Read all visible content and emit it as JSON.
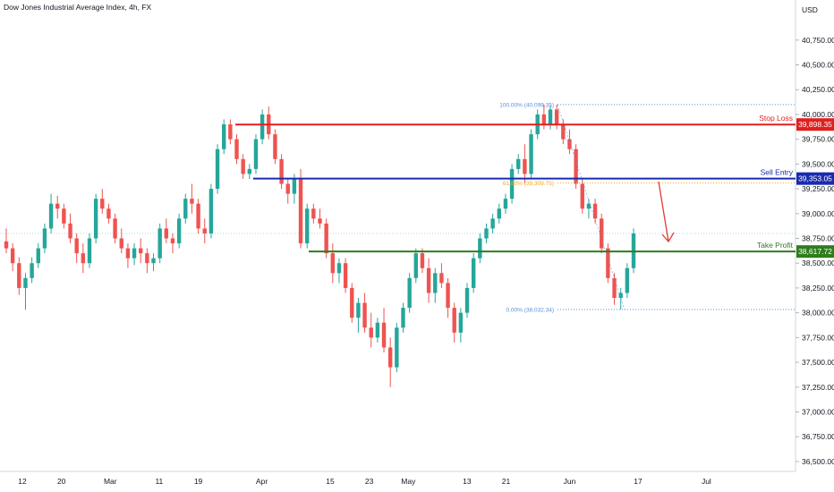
{
  "header": {
    "title": "Dow Jones Industrial Average Index, 4h, FX",
    "currency": "USD"
  },
  "chart_data": {
    "type": "candlestick",
    "title": "Dow Jones Industrial Average Index, 4h, FX",
    "ylim": [
      36400,
      41100
    ],
    "y_ticks": [
      {
        "value": 40750,
        "label": "40,750.00"
      },
      {
        "value": 40500,
        "label": "40,500.00"
      },
      {
        "value": 40250,
        "label": "40,250.00"
      },
      {
        "value": 40000,
        "label": "40,000.00"
      },
      {
        "value": 39750,
        "label": "39,750.00"
      },
      {
        "value": 39500,
        "label": "39,500.00"
      },
      {
        "value": 39250,
        "label": "39,250.00"
      },
      {
        "value": 39000,
        "label": "39,000.00"
      },
      {
        "value": 38750,
        "label": "38,750.00"
      },
      {
        "value": 38500,
        "label": "38,500.00"
      },
      {
        "value": 38250,
        "label": "38,250.00"
      },
      {
        "value": 38000,
        "label": "38,000.00"
      },
      {
        "value": 37750,
        "label": "37,750.00"
      },
      {
        "value": 37500,
        "label": "37,500.00"
      },
      {
        "value": 37250,
        "label": "37,250.00"
      },
      {
        "value": 37000,
        "label": "37,000.00"
      },
      {
        "value": 36750,
        "label": "36,750.00"
      },
      {
        "value": 36500,
        "label": "36,500.00"
      }
    ],
    "x_ticks": [
      {
        "date": "2024-02-12",
        "label": "12"
      },
      {
        "date": "2024-02-20",
        "label": "20"
      },
      {
        "date": "2024-03-01",
        "label": "Mar"
      },
      {
        "date": "2024-03-11",
        "label": "11"
      },
      {
        "date": "2024-03-19",
        "label": "19"
      },
      {
        "date": "2024-04-01",
        "label": "Apr"
      },
      {
        "date": "2024-04-15",
        "label": "15"
      },
      {
        "date": "2024-04-23",
        "label": "23"
      },
      {
        "date": "2024-05-01",
        "label": "May"
      },
      {
        "date": "2024-05-13",
        "label": "13"
      },
      {
        "date": "2024-05-21",
        "label": "21"
      },
      {
        "date": "2024-06-03",
        "label": "Jun"
      },
      {
        "date": "2024-06-17",
        "label": "17"
      },
      {
        "date": "2024-07-01",
        "label": "Jul"
      }
    ],
    "levels": [
      {
        "name": "Stop Loss",
        "value": 39898.35,
        "price_label": "39,898.35",
        "color": "#e01f1f"
      },
      {
        "name": "Sell Entry",
        "value": 39353.05,
        "price_label": "39,353.05",
        "color": "#1a2bb0"
      },
      {
        "name": "Take Profit",
        "value": 38617.72,
        "price_label": "38,617.72",
        "color": "#2e7d1e"
      }
    ],
    "fibonacci": [
      {
        "label": "100.00% (40,099.35)",
        "value": 40099.35,
        "color": "#5b8fd6"
      },
      {
        "label": "61.80% (39,309.75)",
        "value": 39309.75,
        "color": "#f5a623"
      },
      {
        "label": "0.00% (38,032.34)",
        "value": 38032.34,
        "color": "#5b8fd6"
      }
    ],
    "last_price": 38800,
    "series": [
      {
        "ohlc": [
          [
            38720,
            38850,
            38600,
            38650
          ],
          [
            38650,
            38700,
            38420,
            38500
          ],
          [
            38500,
            38560,
            38180,
            38250
          ],
          [
            38250,
            38400,
            38030,
            38350
          ],
          [
            38350,
            38560,
            38300,
            38500
          ],
          [
            38500,
            38700,
            38450,
            38650
          ],
          [
            38650,
            38900,
            38600,
            38850
          ],
          [
            38850,
            39200,
            38800,
            39100
          ],
          [
            39100,
            39180,
            38950,
            39050
          ],
          [
            39050,
            39100,
            38850,
            38900
          ],
          [
            38900,
            39000,
            38700,
            38750
          ],
          [
            38750,
            38800,
            38500,
            38600
          ],
          [
            38600,
            38700,
            38400,
            38500
          ],
          [
            38500,
            38800,
            38450,
            38750
          ],
          [
            38750,
            39200,
            38700,
            39150
          ],
          [
            39150,
            39250,
            39000,
            39050
          ],
          [
            39050,
            39100,
            38900,
            38950
          ],
          [
            38950,
            39000,
            38700,
            38750
          ],
          [
            38750,
            38850,
            38600,
            38650
          ],
          [
            38650,
            38700,
            38450,
            38550
          ],
          [
            38550,
            38700,
            38480,
            38650
          ],
          [
            38650,
            38750,
            38500,
            38600
          ],
          [
            38600,
            38650,
            38400,
            38500
          ],
          [
            38500,
            38600,
            38420,
            38550
          ],
          [
            38550,
            38900,
            38500,
            38850
          ],
          [
            38850,
            38950,
            38700,
            38750
          ],
          [
            38750,
            38800,
            38600,
            38700
          ],
          [
            38700,
            39000,
            38650,
            38950
          ],
          [
            38950,
            39200,
            38900,
            39150
          ],
          [
            39150,
            39300,
            39000,
            39100
          ],
          [
            39100,
            39150,
            38800,
            38850
          ],
          [
            38850,
            38950,
            38700,
            38800
          ],
          [
            38800,
            39300,
            38750,
            39250
          ],
          [
            39250,
            39700,
            39200,
            39650
          ],
          [
            39650,
            39950,
            39600,
            39900
          ],
          [
            39900,
            39950,
            39700,
            39750
          ],
          [
            39750,
            39800,
            39500,
            39550
          ],
          [
            39550,
            39600,
            39350,
            39400
          ],
          [
            39400,
            39500,
            39350,
            39450
          ],
          [
            39450,
            39800,
            39400,
            39750
          ],
          [
            39750,
            40050,
            39700,
            40000
          ],
          [
            40000,
            40080,
            39750,
            39800
          ],
          [
            39800,
            39850,
            39500,
            39550
          ],
          [
            39550,
            39600,
            39250,
            39300
          ],
          [
            39300,
            39350,
            39100,
            39200
          ],
          [
            39200,
            39400,
            39100,
            39350
          ],
          [
            39350,
            39450,
            38650,
            38700
          ],
          [
            38700,
            39100,
            38650,
            39050
          ],
          [
            39050,
            39100,
            38900,
            38950
          ],
          [
            38950,
            39050,
            38850,
            38900
          ],
          [
            38900,
            38950,
            38550,
            38600
          ],
          [
            38600,
            38700,
            38300,
            38400
          ],
          [
            38400,
            38550,
            38300,
            38500
          ],
          [
            38500,
            38550,
            38200,
            38250
          ],
          [
            38250,
            38300,
            37900,
            37950
          ],
          [
            37950,
            38150,
            37800,
            38100
          ],
          [
            38100,
            38200,
            37800,
            37850
          ],
          [
            37850,
            38000,
            37650,
            37750
          ],
          [
            37750,
            37950,
            37700,
            37900
          ],
          [
            37900,
            38050,
            37600,
            37650
          ],
          [
            37650,
            37750,
            37250,
            37450
          ],
          [
            37450,
            37900,
            37400,
            37850
          ],
          [
            37850,
            38100,
            37800,
            38050
          ],
          [
            38050,
            38400,
            38000,
            38350
          ],
          [
            38350,
            38650,
            38300,
            38600
          ],
          [
            38600,
            38650,
            38400,
            38450
          ],
          [
            38450,
            38550,
            38100,
            38200
          ],
          [
            38200,
            38450,
            38100,
            38400
          ],
          [
            38400,
            38500,
            38250,
            38300
          ],
          [
            38300,
            38350,
            37950,
            38050
          ],
          [
            38050,
            38100,
            37700,
            37800
          ],
          [
            37800,
            38050,
            37700,
            38000
          ],
          [
            38000,
            38300,
            37950,
            38250
          ],
          [
            38250,
            38600,
            38200,
            38550
          ],
          [
            38550,
            38800,
            38500,
            38750
          ],
          [
            38750,
            38900,
            38700,
            38850
          ],
          [
            38850,
            39000,
            38800,
            38950
          ],
          [
            38950,
            39100,
            38900,
            39050
          ],
          [
            39050,
            39200,
            39000,
            39150
          ],
          [
            39150,
            39500,
            39100,
            39450
          ],
          [
            39450,
            39600,
            39400,
            39550
          ],
          [
            39550,
            39700,
            39300,
            39400
          ],
          [
            39400,
            39850,
            39350,
            39800
          ],
          [
            39800,
            40050,
            39750,
            40000
          ],
          [
            40000,
            40100,
            39850,
            39900
          ],
          [
            39900,
            40090,
            39850,
            40050
          ],
          [
            40050,
            40099,
            39850,
            39900
          ],
          [
            39900,
            39950,
            39700,
            39750
          ],
          [
            39750,
            39850,
            39600,
            39650
          ],
          [
            39650,
            39700,
            39250,
            39300
          ],
          [
            39300,
            39350,
            39000,
            39050
          ],
          [
            39050,
            39150,
            38950,
            39100
          ],
          [
            39100,
            39150,
            38900,
            38950
          ],
          [
            38950,
            39000,
            38600,
            38650
          ],
          [
            38650,
            38700,
            38300,
            38350
          ],
          [
            38350,
            38400,
            38080,
            38150
          ],
          [
            38150,
            38250,
            38032,
            38200
          ],
          [
            38200,
            38500,
            38150,
            38450
          ],
          [
            38450,
            38850,
            38400,
            38800
          ]
        ]
      }
    ]
  }
}
